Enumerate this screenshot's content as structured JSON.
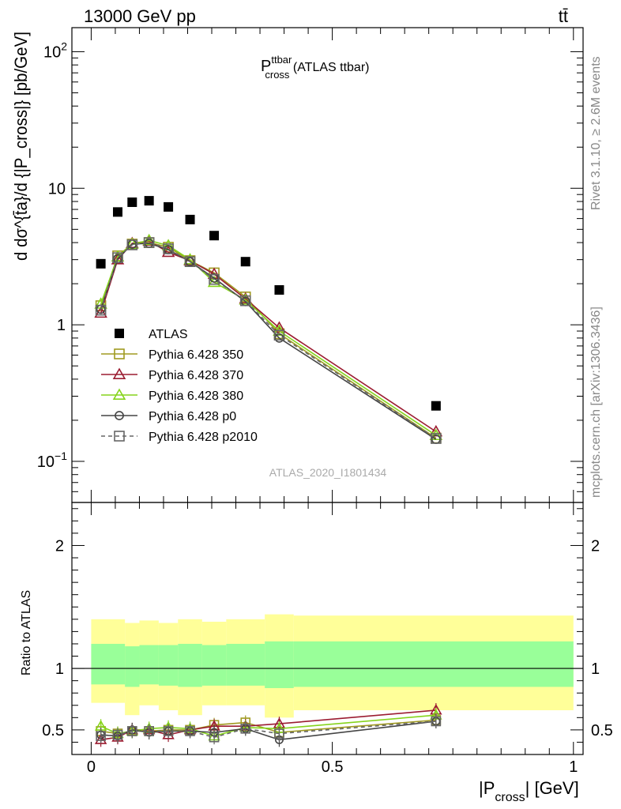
{
  "header": {
    "left": "13000 GeV pp",
    "right": "tt̄",
    "side_rivet": "Rivet 3.1.10, ≥ 2.6M events",
    "side_mcplots": "mcplots.cern.ch [arXiv:1306.3436]"
  },
  "chart_data": [
    {
      "type": "scatter",
      "panel": "main",
      "title_main": "P",
      "title_sup": "ttbar",
      "title_sub": "cross",
      "title_rest": " (ATLAS ttbar)",
      "ylabel": "d dσ^{t̄a}/d {|P_cross|} [pb/GeV]",
      "yscale": "log",
      "ylim": [
        0.05,
        150
      ],
      "xlim": [
        -0.04,
        1.02
      ],
      "yticks": [
        {
          "v": 0.1,
          "base": "10",
          "exp": "−1"
        },
        {
          "v": 1,
          "base": "1",
          "exp": ""
        },
        {
          "v": 10,
          "base": "10",
          "exp": ""
        },
        {
          "v": 100,
          "base": "10",
          "exp": "2"
        }
      ],
      "watermark": "ATLAS_2020_I1801434",
      "legend_position": "lower-left",
      "data": {
        "name": "ATLAS",
        "x": [
          0.02,
          0.055,
          0.085,
          0.12,
          0.16,
          0.205,
          0.255,
          0.32,
          0.39,
          0.715
        ],
        "y": [
          2.8,
          6.7,
          7.9,
          8.1,
          7.3,
          5.9,
          4.5,
          2.9,
          1.8,
          0.255
        ]
      },
      "series": [
        {
          "name": "Pythia 6.428 350",
          "color": "#a09a20",
          "marker": "square",
          "dash": "",
          "x": [
            0.02,
            0.055,
            0.085,
            0.12,
            0.16,
            0.205,
            0.255,
            0.32,
            0.39,
            0.715
          ],
          "y": [
            1.38,
            3.2,
            3.9,
            4.0,
            3.7,
            2.95,
            2.4,
            1.6,
            0.86,
            0.148
          ]
        },
        {
          "name": "Pythia 6.428 370",
          "color": "#9b1c31",
          "marker": "triangle",
          "dash": "",
          "x": [
            0.02,
            0.055,
            0.085,
            0.12,
            0.16,
            0.205,
            0.255,
            0.32,
            0.39,
            0.715
          ],
          "y": [
            1.22,
            3.0,
            3.95,
            4.1,
            3.4,
            2.95,
            2.35,
            1.55,
            0.95,
            0.165
          ]
        },
        {
          "name": "Pythia 6.428 380",
          "color": "#86d41c",
          "marker": "triangle",
          "dash": "",
          "x": [
            0.02,
            0.055,
            0.085,
            0.12,
            0.16,
            0.205,
            0.255,
            0.32,
            0.39,
            0.715
          ],
          "y": [
            1.42,
            3.15,
            3.9,
            4.15,
            3.8,
            3.0,
            2.05,
            1.52,
            0.9,
            0.155
          ]
        },
        {
          "name": "Pythia 6.428 p0",
          "color": "#444444",
          "marker": "circle",
          "dash": "",
          "x": [
            0.02,
            0.055,
            0.085,
            0.12,
            0.16,
            0.205,
            0.255,
            0.32,
            0.39,
            0.715
          ],
          "y": [
            1.3,
            3.05,
            3.9,
            3.95,
            3.55,
            2.9,
            2.2,
            1.48,
            0.8,
            0.145
          ]
        },
        {
          "name": "Pythia 6.428 p2010",
          "color": "#666666",
          "marker": "square",
          "dash": "5,4",
          "x": [
            0.02,
            0.055,
            0.085,
            0.12,
            0.16,
            0.205,
            0.255,
            0.32,
            0.39,
            0.715
          ],
          "y": [
            1.28,
            3.1,
            3.85,
            4.0,
            3.6,
            2.9,
            2.15,
            1.5,
            0.84,
            0.147
          ]
        }
      ]
    },
    {
      "type": "scatter",
      "panel": "ratio",
      "ylabel": "Ratio to ATLAS",
      "xlabel_main": "|P",
      "xlabel_sub": "cross",
      "xlabel_rest": "| [GeV]",
      "ylim": [
        0.3,
        2.35
      ],
      "xlim": [
        -0.04,
        1.02
      ],
      "yticks": [
        0.5,
        1,
        2
      ],
      "xticks": [
        {
          "v": 0,
          "label": "0"
        },
        {
          "v": 0.5,
          "label": "0.5"
        },
        {
          "v": 1,
          "label": "1"
        }
      ],
      "reference_line": 1,
      "bands": {
        "edges": [
          0,
          0.07,
          0.1,
          0.14,
          0.18,
          0.23,
          0.28,
          0.36,
          0.42,
          1.0
        ],
        "outer_low": [
          0.72,
          0.62,
          0.7,
          0.66,
          0.62,
          0.7,
          0.7,
          0.6,
          0.66,
          0.66
        ],
        "outer_high": [
          1.4,
          1.37,
          1.39,
          1.37,
          1.4,
          1.38,
          1.4,
          1.44,
          1.43,
          1.43
        ],
        "inner_low": [
          0.87,
          0.85,
          0.87,
          0.86,
          0.85,
          0.86,
          0.86,
          0.84,
          0.85,
          0.85
        ],
        "inner_high": [
          1.2,
          1.18,
          1.19,
          1.19,
          1.2,
          1.19,
          1.2,
          1.22,
          1.22,
          1.22
        ],
        "outer_color": "#ffff99",
        "inner_color": "#99ff99"
      },
      "series": [
        {
          "name": "Pythia 6.428 350",
          "color": "#a09a20",
          "marker": "square",
          "dash": "",
          "x": [
            0.02,
            0.055,
            0.085,
            0.12,
            0.16,
            0.205,
            0.255,
            0.32,
            0.39,
            0.715
          ],
          "y": [
            0.49,
            0.47,
            0.49,
            0.49,
            0.5,
            0.5,
            0.54,
            0.56,
            0.48,
            0.58
          ]
        },
        {
          "name": "Pythia 6.428 370",
          "color": "#9b1c31",
          "marker": "triangle",
          "dash": "",
          "x": [
            0.02,
            0.055,
            0.085,
            0.12,
            0.16,
            0.205,
            0.255,
            0.32,
            0.39,
            0.715
          ],
          "y": [
            0.42,
            0.44,
            0.5,
            0.5,
            0.46,
            0.5,
            0.53,
            0.53,
            0.55,
            0.66
          ]
        },
        {
          "name": "Pythia 6.428 380",
          "color": "#86d41c",
          "marker": "triangle",
          "dash": "",
          "x": [
            0.02,
            0.055,
            0.085,
            0.12,
            0.16,
            0.205,
            0.255,
            0.32,
            0.39,
            0.715
          ],
          "y": [
            0.53,
            0.47,
            0.49,
            0.51,
            0.52,
            0.51,
            0.45,
            0.52,
            0.51,
            0.62
          ]
        },
        {
          "name": "Pythia 6.428 p0",
          "color": "#444444",
          "marker": "circle",
          "dash": "",
          "x": [
            0.02,
            0.055,
            0.085,
            0.12,
            0.16,
            0.205,
            0.255,
            0.32,
            0.39,
            0.715
          ],
          "y": [
            0.46,
            0.45,
            0.5,
            0.48,
            0.49,
            0.49,
            0.48,
            0.51,
            0.42,
            0.57
          ]
        },
        {
          "name": "Pythia 6.428 p2010",
          "color": "#666666",
          "marker": "square",
          "dash": "5,4",
          "x": [
            0.02,
            0.055,
            0.085,
            0.12,
            0.16,
            0.205,
            0.255,
            0.32,
            0.39,
            0.715
          ],
          "y": [
            0.45,
            0.46,
            0.49,
            0.49,
            0.49,
            0.49,
            0.44,
            0.51,
            0.47,
            0.57
          ]
        }
      ]
    }
  ]
}
